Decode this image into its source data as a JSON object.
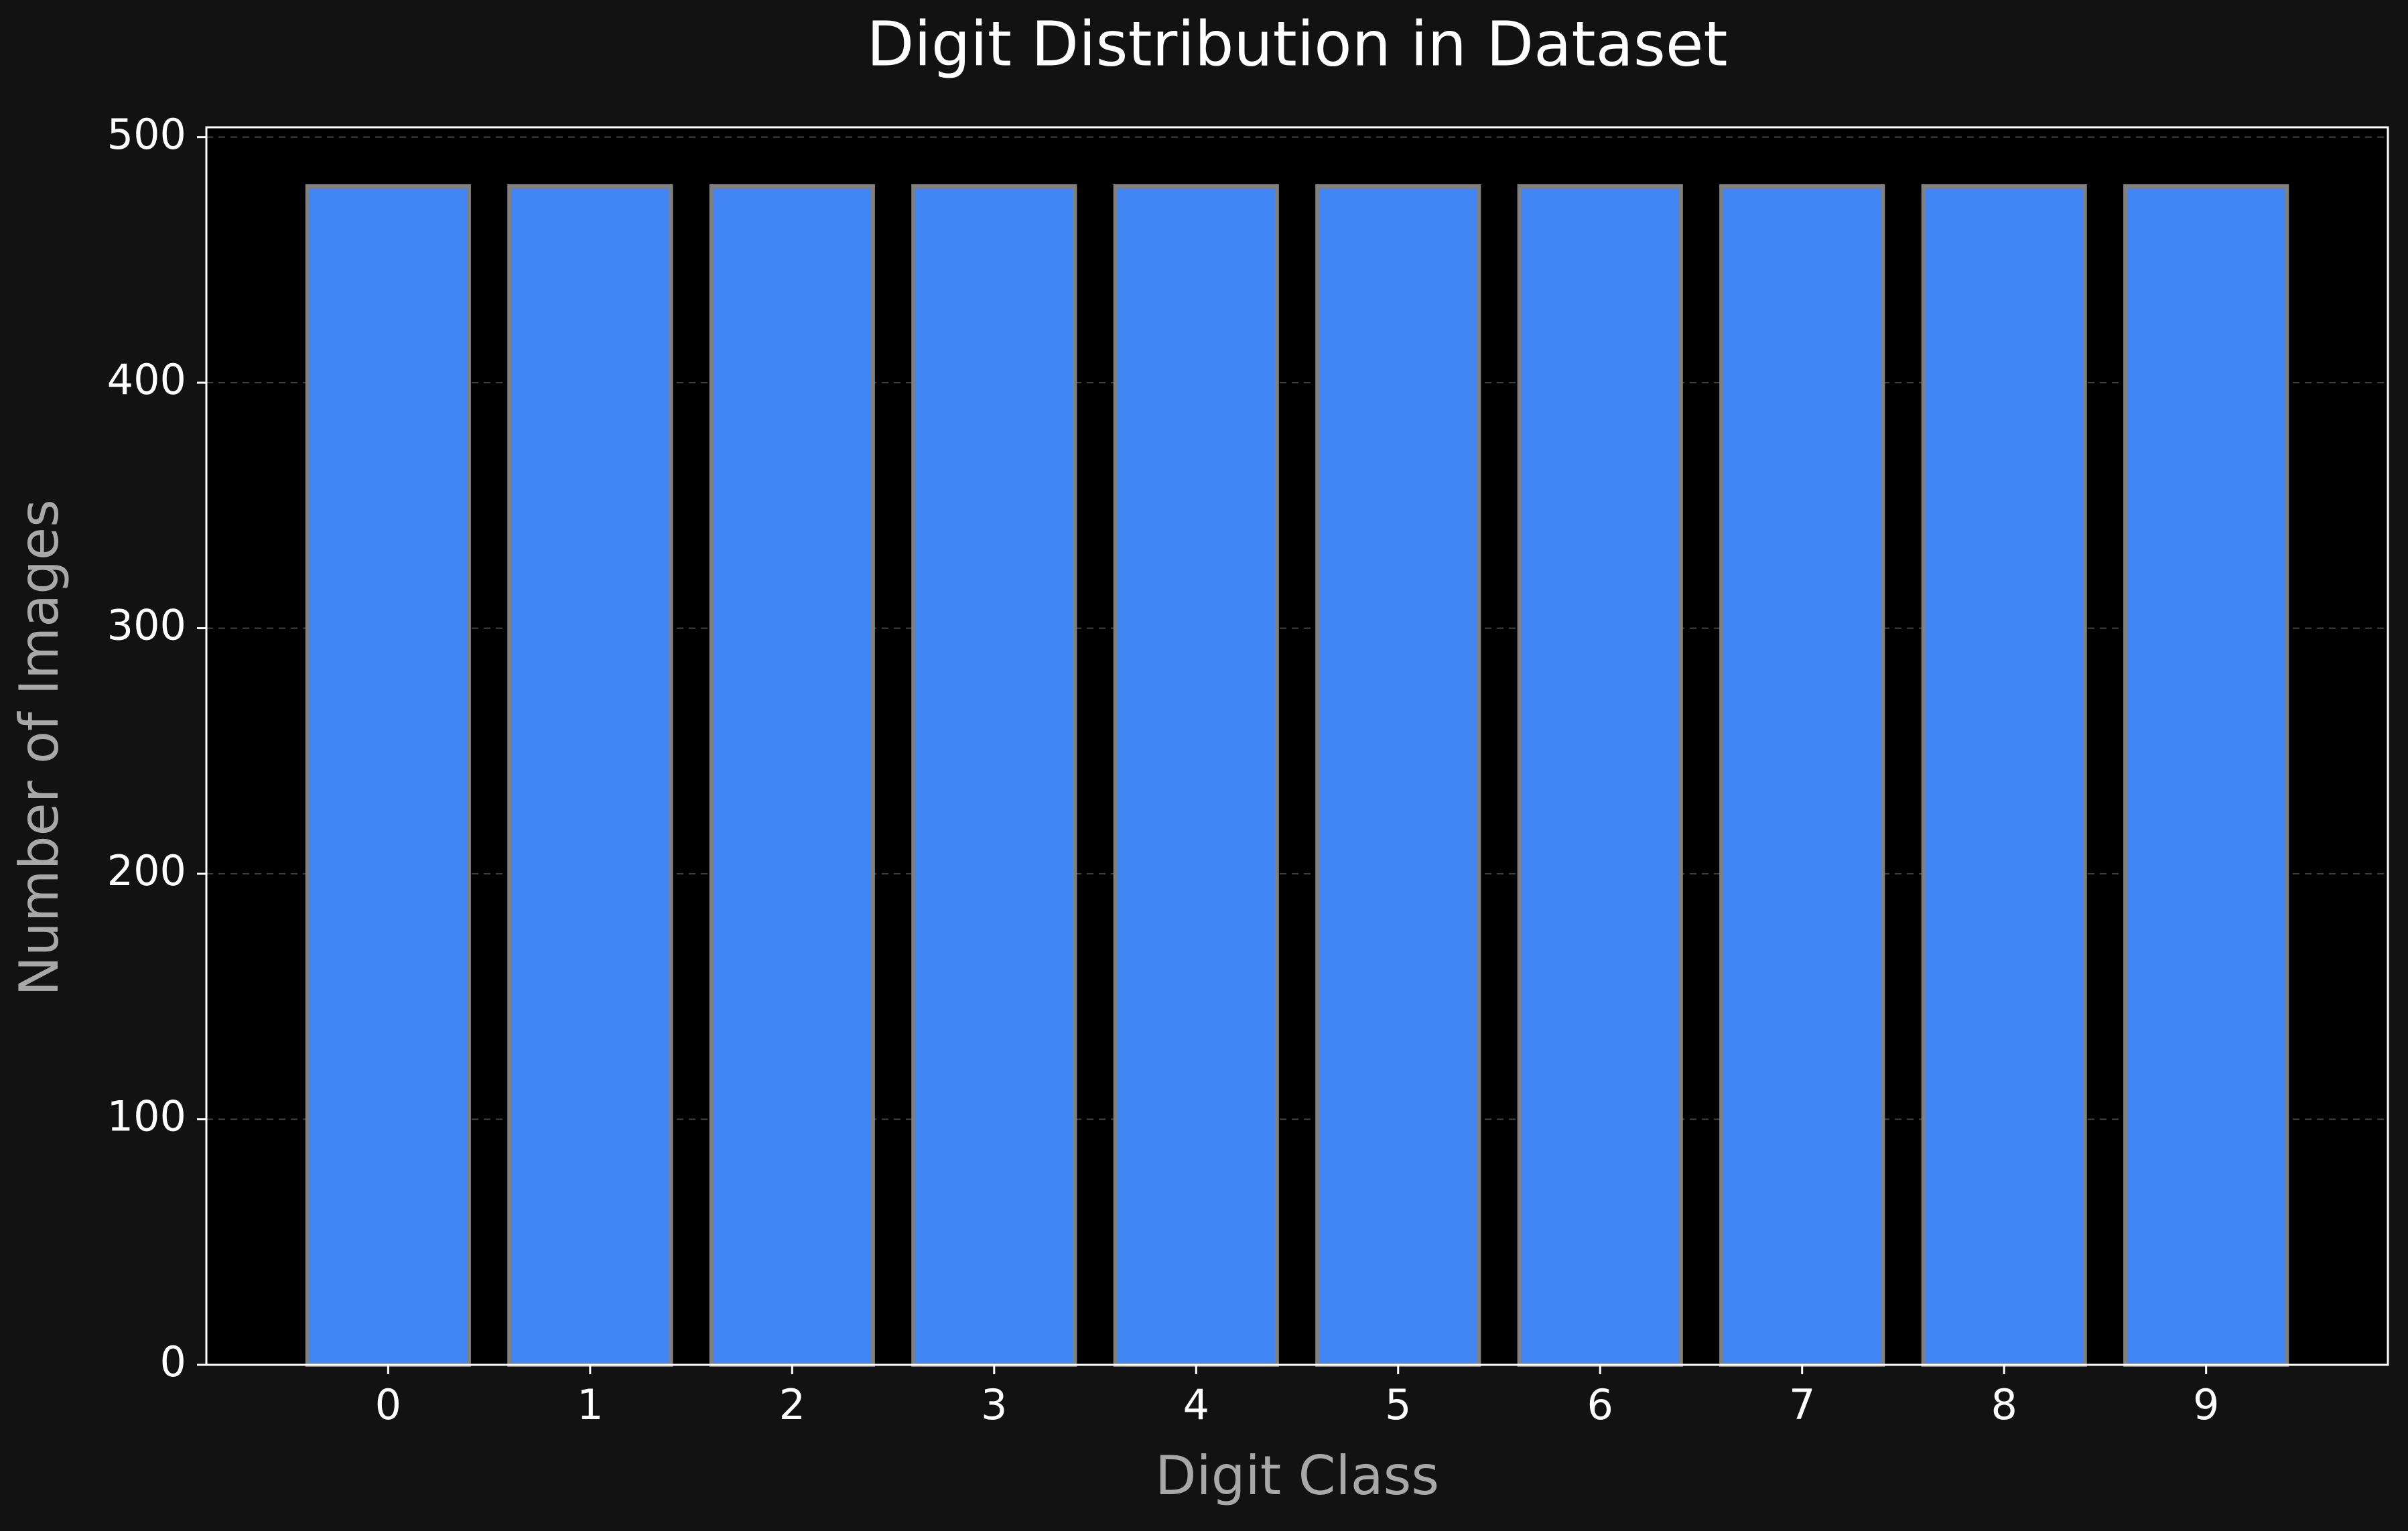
{
  "colors": {
    "page_background": "#121212",
    "plot_background": "#000000",
    "bar_fill": "#4285F4",
    "bar_edge": "#808080",
    "axis_frame": "#FFFFFF",
    "grid": "#444444",
    "tick_text": "#FFFFFF",
    "axis_label_text": "#A8A8A8",
    "title_text": "#FFFFFF"
  },
  "chart_data": {
    "type": "bar",
    "title": "Digit Distribution in Dataset",
    "xlabel": "Digit Class",
    "ylabel": "Number of Images",
    "categories": [
      "0",
      "1",
      "2",
      "3",
      "4",
      "5",
      "6",
      "7",
      "8",
      "9"
    ],
    "values": [
      480,
      480,
      480,
      480,
      480,
      480,
      480,
      480,
      480,
      480
    ],
    "ylim": [
      0,
      504
    ],
    "yticks": [
      0,
      100,
      200,
      300,
      400,
      500
    ],
    "ytick_labels": [
      "0",
      "100",
      "200",
      "300",
      "400",
      "500"
    ],
    "grid": true,
    "grid_axis": "y",
    "grid_style": "dashed",
    "legend": false
  }
}
